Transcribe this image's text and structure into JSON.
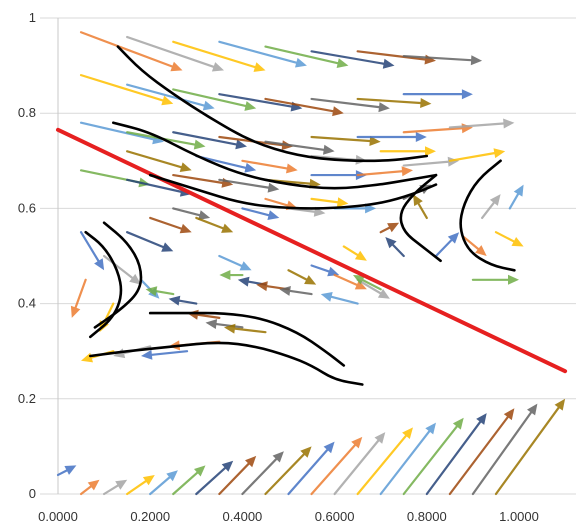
{
  "chart_data": {
    "type": "scatter",
    "title": "",
    "xlabel": "",
    "ylabel": "",
    "xlim": [
      0,
      1.1
    ],
    "ylim": [
      0,
      1.0
    ],
    "x_ticks": [
      {
        "value": 0,
        "label": "0.0000"
      },
      {
        "value": 0.2,
        "label": "0.2000"
      },
      {
        "value": 0.4,
        "label": "0.4000"
      },
      {
        "value": 0.6,
        "label": "0.6000"
      },
      {
        "value": 0.8,
        "label": "0.8000"
      },
      {
        "value": 1.0,
        "label": "1.0000"
      }
    ],
    "y_ticks": [
      {
        "value": 0,
        "label": "0"
      },
      {
        "value": 0.2,
        "label": "0.2"
      },
      {
        "value": 0.4,
        "label": "0.4"
      },
      {
        "value": 0.6,
        "label": "0.6"
      },
      {
        "value": 0.8,
        "label": "0.8"
      },
      {
        "value": 1.0,
        "label": "1"
      }
    ],
    "grid": "horizontal",
    "legend": "none",
    "palette": [
      "#4472c4",
      "#ed7d31",
      "#a5a5a5",
      "#ffc000",
      "#5b9bd5",
      "#70ad47",
      "#264478",
      "#9e480e",
      "#636363",
      "#997300"
    ],
    "vector_field": [
      {
        "x": 0.0,
        "y": 0.04,
        "dx": 0.04,
        "dy": 0.02
      },
      {
        "x": 0.05,
        "y": 0.0,
        "dx": 0.04,
        "dy": 0.03
      },
      {
        "x": 0.1,
        "y": 0.0,
        "dx": 0.05,
        "dy": 0.03
      },
      {
        "x": 0.15,
        "y": 0.0,
        "dx": 0.06,
        "dy": 0.04
      },
      {
        "x": 0.2,
        "y": 0.0,
        "dx": 0.06,
        "dy": 0.05
      },
      {
        "x": 0.25,
        "y": 0.0,
        "dx": 0.07,
        "dy": 0.06
      },
      {
        "x": 0.3,
        "y": 0.0,
        "dx": 0.08,
        "dy": 0.07
      },
      {
        "x": 0.35,
        "y": 0.0,
        "dx": 0.08,
        "dy": 0.08
      },
      {
        "x": 0.4,
        "y": 0.0,
        "dx": 0.09,
        "dy": 0.09
      },
      {
        "x": 0.45,
        "y": 0.0,
        "dx": 0.1,
        "dy": 0.1
      },
      {
        "x": 0.5,
        "y": 0.0,
        "dx": 0.1,
        "dy": 0.11
      },
      {
        "x": 0.55,
        "y": 0.0,
        "dx": 0.11,
        "dy": 0.12
      },
      {
        "x": 0.6,
        "y": 0.0,
        "dx": 0.11,
        "dy": 0.13
      },
      {
        "x": 0.65,
        "y": 0.0,
        "dx": 0.12,
        "dy": 0.14
      },
      {
        "x": 0.7,
        "y": 0.0,
        "dx": 0.12,
        "dy": 0.15
      },
      {
        "x": 0.75,
        "y": 0.0,
        "dx": 0.13,
        "dy": 0.16
      },
      {
        "x": 0.8,
        "y": 0.0,
        "dx": 0.13,
        "dy": 0.17
      },
      {
        "x": 0.85,
        "y": 0.0,
        "dx": 0.14,
        "dy": 0.18
      },
      {
        "x": 0.9,
        "y": 0.0,
        "dx": 0.14,
        "dy": 0.19
      },
      {
        "x": 0.95,
        "y": 0.0,
        "dx": 0.15,
        "dy": 0.2
      },
      {
        "x": 0.05,
        "y": 0.55,
        "dx": 0.05,
        "dy": -0.08
      },
      {
        "x": 0.06,
        "y": 0.45,
        "dx": -0.03,
        "dy": -0.08
      },
      {
        "x": 0.1,
        "y": 0.5,
        "dx": 0.08,
        "dy": -0.06
      },
      {
        "x": 0.12,
        "y": 0.4,
        "dx": -0.03,
        "dy": -0.06
      },
      {
        "x": 0.18,
        "y": 0.45,
        "dx": 0.04,
        "dy": -0.04
      },
      {
        "x": 0.25,
        "y": 0.42,
        "dx": -0.06,
        "dy": 0.01
      },
      {
        "x": 0.3,
        "y": 0.4,
        "dx": -0.06,
        "dy": 0.01
      },
      {
        "x": 0.35,
        "y": 0.37,
        "dx": -0.07,
        "dy": 0.01
      },
      {
        "x": 0.4,
        "y": 0.35,
        "dx": -0.08,
        "dy": 0.01
      },
      {
        "x": 0.45,
        "y": 0.34,
        "dx": -0.09,
        "dy": 0.01
      },
      {
        "x": 0.28,
        "y": 0.3,
        "dx": -0.1,
        "dy": -0.01
      },
      {
        "x": 0.35,
        "y": 0.32,
        "dx": -0.11,
        "dy": -0.01
      },
      {
        "x": 0.2,
        "y": 0.31,
        "dx": -0.08,
        "dy": -0.02
      },
      {
        "x": 0.12,
        "y": 0.3,
        "dx": -0.07,
        "dy": -0.02
      },
      {
        "x": 0.35,
        "y": 0.5,
        "dx": 0.07,
        "dy": -0.03
      },
      {
        "x": 0.4,
        "y": 0.46,
        "dx": -0.05,
        "dy": 0.0
      },
      {
        "x": 0.45,
        "y": 0.44,
        "dx": -0.06,
        "dy": 0.01
      },
      {
        "x": 0.5,
        "y": 0.43,
        "dx": -0.07,
        "dy": 0.01
      },
      {
        "x": 0.55,
        "y": 0.42,
        "dx": -0.07,
        "dy": 0.01
      },
      {
        "x": 0.5,
        "y": 0.47,
        "dx": 0.06,
        "dy": -0.03
      },
      {
        "x": 0.55,
        "y": 0.48,
        "dx": 0.06,
        "dy": -0.02
      },
      {
        "x": 0.6,
        "y": 0.46,
        "dx": 0.07,
        "dy": -0.03
      },
      {
        "x": 0.65,
        "y": 0.45,
        "dx": 0.07,
        "dy": -0.04
      },
      {
        "x": 0.62,
        "y": 0.52,
        "dx": 0.05,
        "dy": -0.03
      },
      {
        "x": 0.65,
        "y": 0.4,
        "dx": -0.08,
        "dy": 0.02
      },
      {
        "x": 0.7,
        "y": 0.43,
        "dx": -0.06,
        "dy": 0.03
      },
      {
        "x": 0.75,
        "y": 0.5,
        "dx": -0.04,
        "dy": 0.04
      },
      {
        "x": 0.7,
        "y": 0.55,
        "dx": 0.04,
        "dy": 0.02
      },
      {
        "x": 0.75,
        "y": 0.62,
        "dx": 0.06,
        "dy": 0.03
      },
      {
        "x": 0.8,
        "y": 0.58,
        "dx": -0.03,
        "dy": 0.05
      },
      {
        "x": 0.82,
        "y": 0.5,
        "dx": 0.05,
        "dy": 0.05
      },
      {
        "x": 0.88,
        "y": 0.54,
        "dx": 0.05,
        "dy": -0.04
      },
      {
        "x": 0.92,
        "y": 0.58,
        "dx": 0.04,
        "dy": 0.05
      },
      {
        "x": 0.95,
        "y": 0.55,
        "dx": 0.06,
        "dy": -0.03
      },
      {
        "x": 0.98,
        "y": 0.6,
        "dx": 0.03,
        "dy": 0.05
      },
      {
        "x": 0.9,
        "y": 0.45,
        "dx": 0.1,
        "dy": 0.0
      },
      {
        "x": 0.15,
        "y": 0.55,
        "dx": 0.1,
        "dy": -0.04
      },
      {
        "x": 0.2,
        "y": 0.58,
        "dx": 0.09,
        "dy": -0.03
      },
      {
        "x": 0.25,
        "y": 0.6,
        "dx": 0.08,
        "dy": -0.02
      },
      {
        "x": 0.3,
        "y": 0.58,
        "dx": 0.08,
        "dy": -0.03
      },
      {
        "x": 0.4,
        "y": 0.6,
        "dx": 0.08,
        "dy": -0.02
      },
      {
        "x": 0.45,
        "y": 0.62,
        "dx": 0.07,
        "dy": -0.02
      },
      {
        "x": 0.5,
        "y": 0.6,
        "dx": 0.08,
        "dy": -0.01
      },
      {
        "x": 0.55,
        "y": 0.62,
        "dx": 0.08,
        "dy": -0.01
      },
      {
        "x": 0.6,
        "y": 0.6,
        "dx": 0.09,
        "dy": 0.0
      },
      {
        "x": 0.05,
        "y": 0.68,
        "dx": 0.15,
        "dy": -0.03
      },
      {
        "x": 0.15,
        "y": 0.66,
        "dx": 0.14,
        "dy": -0.03
      },
      {
        "x": 0.25,
        "y": 0.67,
        "dx": 0.13,
        "dy": -0.02
      },
      {
        "x": 0.35,
        "y": 0.66,
        "dx": 0.13,
        "dy": -0.02
      },
      {
        "x": 0.45,
        "y": 0.66,
        "dx": 0.12,
        "dy": -0.01
      },
      {
        "x": 0.55,
        "y": 0.67,
        "dx": 0.12,
        "dy": 0.0
      },
      {
        "x": 0.65,
        "y": 0.67,
        "dx": 0.12,
        "dy": 0.01
      },
      {
        "x": 0.75,
        "y": 0.69,
        "dx": 0.12,
        "dy": 0.01
      },
      {
        "x": 0.85,
        "y": 0.7,
        "dx": 0.12,
        "dy": 0.02
      },
      {
        "x": 0.05,
        "y": 0.78,
        "dx": 0.18,
        "dy": -0.04
      },
      {
        "x": 0.15,
        "y": 0.76,
        "dx": 0.17,
        "dy": -0.03
      },
      {
        "x": 0.25,
        "y": 0.76,
        "dx": 0.16,
        "dy": -0.03
      },
      {
        "x": 0.35,
        "y": 0.75,
        "dx": 0.16,
        "dy": -0.02
      },
      {
        "x": 0.45,
        "y": 0.74,
        "dx": 0.15,
        "dy": -0.02
      },
      {
        "x": 0.55,
        "y": 0.75,
        "dx": 0.15,
        "dy": -0.01
      },
      {
        "x": 0.65,
        "y": 0.75,
        "dx": 0.15,
        "dy": 0.0
      },
      {
        "x": 0.75,
        "y": 0.76,
        "dx": 0.15,
        "dy": 0.01
      },
      {
        "x": 0.85,
        "y": 0.77,
        "dx": 0.14,
        "dy": 0.01
      },
      {
        "x": 0.05,
        "y": 0.88,
        "dx": 0.2,
        "dy": -0.06
      },
      {
        "x": 0.15,
        "y": 0.86,
        "dx": 0.19,
        "dy": -0.05
      },
      {
        "x": 0.25,
        "y": 0.85,
        "dx": 0.18,
        "dy": -0.04
      },
      {
        "x": 0.35,
        "y": 0.84,
        "dx": 0.18,
        "dy": -0.03
      },
      {
        "x": 0.45,
        "y": 0.83,
        "dx": 0.17,
        "dy": -0.03
      },
      {
        "x": 0.55,
        "y": 0.83,
        "dx": 0.17,
        "dy": -0.02
      },
      {
        "x": 0.65,
        "y": 0.83,
        "dx": 0.16,
        "dy": -0.01
      },
      {
        "x": 0.75,
        "y": 0.84,
        "dx": 0.15,
        "dy": 0.0
      },
      {
        "x": 0.05,
        "y": 0.97,
        "dx": 0.22,
        "dy": -0.08
      },
      {
        "x": 0.15,
        "y": 0.96,
        "dx": 0.21,
        "dy": -0.07
      },
      {
        "x": 0.25,
        "y": 0.95,
        "dx": 0.2,
        "dy": -0.06
      },
      {
        "x": 0.35,
        "y": 0.95,
        "dx": 0.19,
        "dy": -0.05
      },
      {
        "x": 0.45,
        "y": 0.94,
        "dx": 0.18,
        "dy": -0.04
      },
      {
        "x": 0.55,
        "y": 0.93,
        "dx": 0.18,
        "dy": -0.03
      },
      {
        "x": 0.65,
        "y": 0.93,
        "dx": 0.17,
        "dy": -0.02
      },
      {
        "x": 0.75,
        "y": 0.92,
        "dx": 0.17,
        "dy": -0.01
      },
      {
        "x": 0.15,
        "y": 0.72,
        "dx": 0.14,
        "dy": -0.04
      },
      {
        "x": 0.3,
        "y": 0.71,
        "dx": 0.13,
        "dy": -0.03
      },
      {
        "x": 0.4,
        "y": 0.7,
        "dx": 0.12,
        "dy": -0.02
      },
      {
        "x": 0.55,
        "y": 0.71,
        "dx": 0.12,
        "dy": -0.01
      },
      {
        "x": 0.7,
        "y": 0.72,
        "dx": 0.12,
        "dy": 0.0
      }
    ],
    "reference_line": {
      "x": [
        0,
        1.1
      ],
      "y": [
        0.765,
        0.258
      ],
      "color": "#e62020"
    },
    "trajectories": [
      {
        "points": [
          [
            0.13,
            0.94
          ],
          [
            0.18,
            0.89
          ],
          [
            0.25,
            0.84
          ],
          [
            0.33,
            0.79
          ],
          [
            0.42,
            0.74
          ],
          [
            0.52,
            0.71
          ],
          [
            0.62,
            0.7
          ],
          [
            0.72,
            0.7
          ],
          [
            0.8,
            0.71
          ]
        ]
      },
      {
        "points": [
          [
            0.12,
            0.78
          ],
          [
            0.2,
            0.76
          ],
          [
            0.3,
            0.71
          ],
          [
            0.4,
            0.67
          ],
          [
            0.5,
            0.65
          ],
          [
            0.6,
            0.64
          ],
          [
            0.7,
            0.65
          ],
          [
            0.76,
            0.66
          ],
          [
            0.82,
            0.67
          ]
        ]
      },
      {
        "points": [
          [
            0.2,
            0.67
          ],
          [
            0.3,
            0.64
          ],
          [
            0.4,
            0.61
          ],
          [
            0.5,
            0.6
          ],
          [
            0.6,
            0.6
          ],
          [
            0.7,
            0.61
          ],
          [
            0.77,
            0.63
          ],
          [
            0.82,
            0.65
          ]
        ]
      },
      {
        "points": [
          [
            0.1,
            0.57
          ],
          [
            0.15,
            0.53
          ],
          [
            0.18,
            0.48
          ],
          [
            0.18,
            0.43
          ],
          [
            0.14,
            0.39
          ],
          [
            0.08,
            0.35
          ]
        ]
      },
      {
        "points": [
          [
            0.06,
            0.55
          ],
          [
            0.1,
            0.52
          ],
          [
            0.13,
            0.47
          ],
          [
            0.14,
            0.42
          ],
          [
            0.12,
            0.37
          ],
          [
            0.07,
            0.33
          ]
        ]
      },
      {
        "points": [
          [
            0.2,
            0.38
          ],
          [
            0.28,
            0.38
          ],
          [
            0.36,
            0.38
          ],
          [
            0.44,
            0.37
          ],
          [
            0.52,
            0.34
          ],
          [
            0.58,
            0.3
          ],
          [
            0.62,
            0.27
          ]
        ]
      },
      {
        "points": [
          [
            0.07,
            0.29
          ],
          [
            0.15,
            0.3
          ],
          [
            0.25,
            0.31
          ],
          [
            0.35,
            0.32
          ],
          [
            0.43,
            0.31
          ],
          [
            0.5,
            0.29
          ],
          [
            0.55,
            0.27
          ],
          [
            0.6,
            0.24
          ],
          [
            0.66,
            0.23
          ]
        ]
      },
      {
        "points": [
          [
            0.82,
            0.67
          ],
          [
            0.77,
            0.63
          ],
          [
            0.74,
            0.59
          ],
          [
            0.75,
            0.55
          ],
          [
            0.79,
            0.52
          ],
          [
            0.83,
            0.49
          ]
        ]
      },
      {
        "points": [
          [
            0.96,
            0.7
          ],
          [
            0.91,
            0.66
          ],
          [
            0.88,
            0.61
          ],
          [
            0.87,
            0.56
          ],
          [
            0.89,
            0.51
          ],
          [
            0.94,
            0.48
          ],
          [
            0.99,
            0.47
          ]
        ]
      }
    ]
  }
}
